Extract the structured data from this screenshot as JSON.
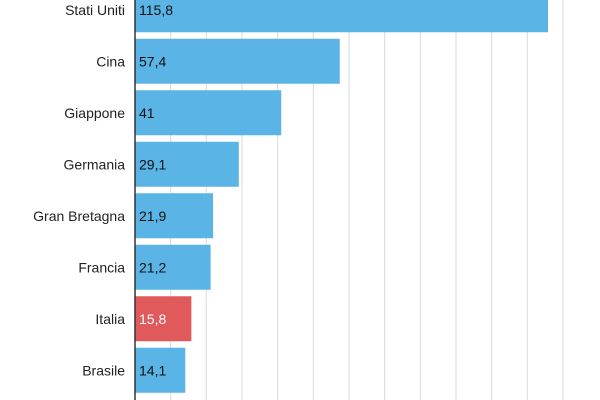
{
  "chart_data": {
    "type": "bar",
    "orientation": "horizontal",
    "categories": [
      "Stati Uniti",
      "Cina",
      "Giappone",
      "Germania",
      "Gran Bretagna",
      "Francia",
      "Italia",
      "Brasile"
    ],
    "values": [
      115.8,
      57.4,
      41,
      29.1,
      21.9,
      21.2,
      15.8,
      14.1
    ],
    "value_labels": [
      "115,8",
      "57,4",
      "41",
      "29,1",
      "21,9",
      "21,2",
      "15,8",
      "14,1"
    ],
    "highlight_category": "Italia",
    "xlim": [
      0,
      120
    ],
    "grid": true,
    "colors": {
      "bar": "#5ab4e5",
      "highlight": "#e05a5c",
      "grid": "#d9d9d9",
      "axis": "#333333"
    }
  }
}
